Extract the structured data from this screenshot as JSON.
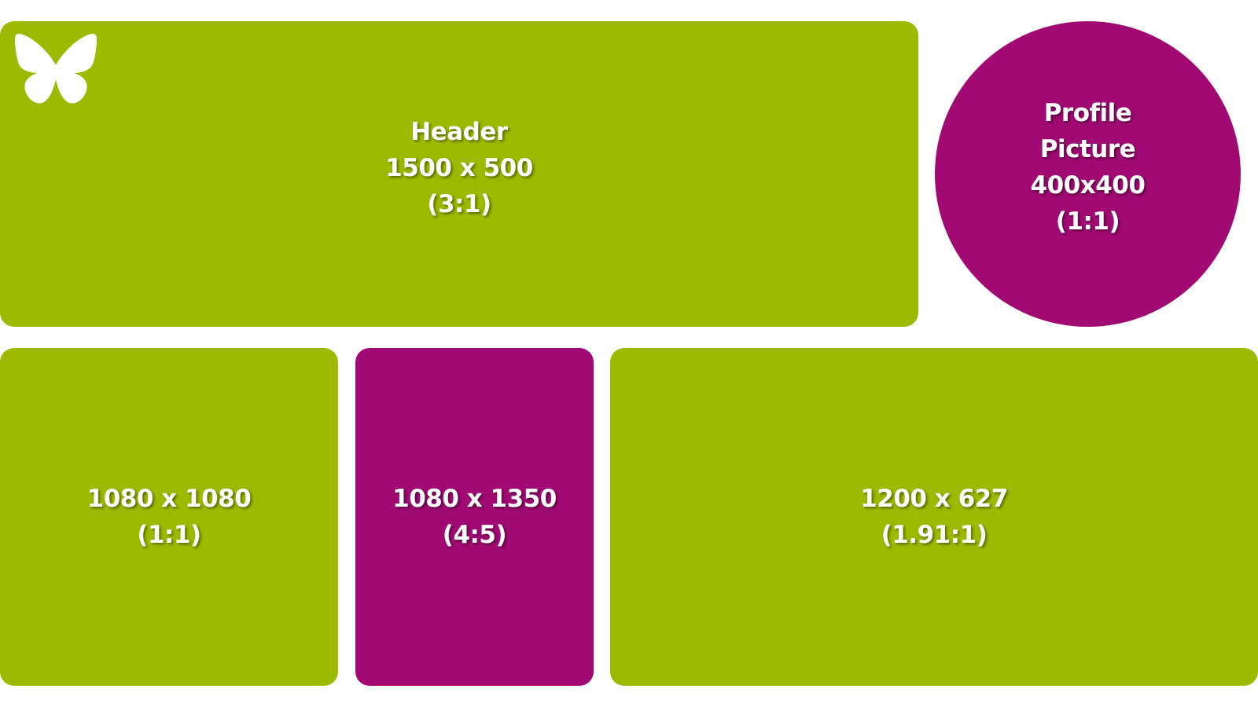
{
  "colors": {
    "green": "#9eb901",
    "magenta": "#a10a72",
    "white": "#ffffff"
  },
  "logo": {
    "icon": "butterfly-icon"
  },
  "tiles": {
    "header": {
      "lines": [
        "Header",
        "1500 x 500",
        "(3:1)"
      ]
    },
    "profile": {
      "lines": [
        "Profile",
        "Picture",
        "400x400",
        "(1:1)"
      ]
    },
    "square": {
      "lines": [
        "1080 x 1080",
        "(1:1)"
      ]
    },
    "portrait": {
      "lines": [
        "1080 x 1350",
        "(4:5)"
      ]
    },
    "landscape": {
      "lines": [
        "1200 x 627",
        "(1.91:1)"
      ]
    }
  }
}
